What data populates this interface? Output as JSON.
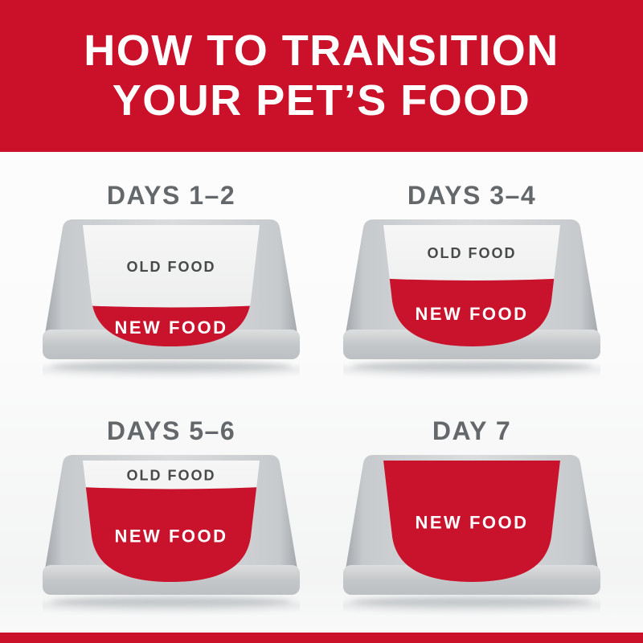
{
  "header": {
    "title_line1": "HOW TO TRANSITION",
    "title_line2": "YOUR PET’S FOOD"
  },
  "bowls": [
    {
      "day_label": "DAYS 1–2",
      "old_food_label": "OLD FOOD",
      "new_food_label": "NEW FOOD",
      "new_food_percent": 25
    },
    {
      "day_label": "DAYS 3–4",
      "old_food_label": "OLD FOOD",
      "new_food_label": "NEW FOOD",
      "new_food_percent": 50
    },
    {
      "day_label": "DAYS 5–6",
      "old_food_label": "OLD FOOD",
      "new_food_label": "NEW FOOD",
      "new_food_percent": 75
    },
    {
      "day_label": "DAY 7",
      "new_food_label": "NEW FOOD",
      "new_food_percent": 100
    }
  ],
  "colors": {
    "banner_red": "#CB1129",
    "new_food_red": "#C9122C",
    "old_food_surface": "#EDEDEE",
    "bowl_gray": "#B8BBBE",
    "day_label_gray": "#65686A",
    "old_food_text": "#48494B",
    "new_food_text": "#FFFFFF"
  }
}
